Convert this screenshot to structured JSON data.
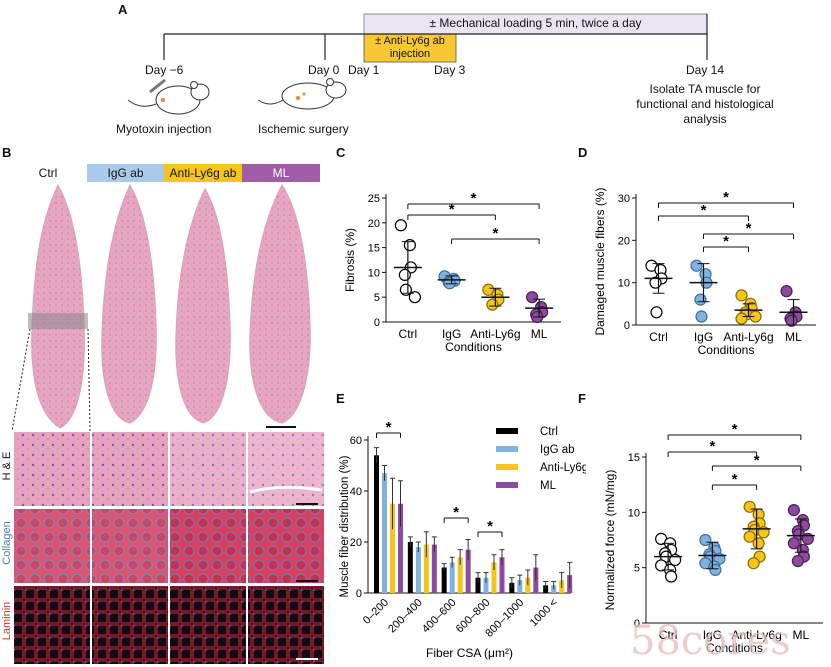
{
  "panel_a": {
    "label": "A",
    "loading_text": "± Mechanical loading 5 min, twice a day",
    "injection_text_line1": "± Anti-Ly6g ab",
    "injection_text_line2": "injection",
    "day_minus6": "Day −6",
    "day_0": "Day 0",
    "day_1": "Day 1",
    "day_3": "Day 3",
    "day_14": "Day 14",
    "myotoxin": "Myotoxin injection",
    "ischemic": "Ischemic surgery",
    "isolate_line1": "Isolate TA muscle for",
    "isolate_line2": "functional and histological",
    "isolate_line3": "analysis"
  },
  "panel_b": {
    "label": "B",
    "conditions": [
      "Ctrl",
      "IgG ab",
      "Anti-Ly6g ab",
      "ML"
    ],
    "condition_colors": [
      "#ffffff",
      "#a9cbe9",
      "#f5c518",
      "#a05ca5"
    ],
    "row_labels": [
      "H & E",
      "Collagen",
      "Laminin"
    ],
    "row_label_colors": [
      "#111111",
      "#4a7fb5",
      "#c0392b"
    ]
  },
  "colors": {
    "ctrl": "#000000",
    "igg": "#7fb2e0",
    "anti": "#f5c518",
    "ml": "#8e4a9e"
  },
  "watermark": "58cores",
  "chart_data": [
    {
      "panel": "C",
      "type": "scatter",
      "ylabel": "Fibrosis (%)",
      "xlabel": "Conditions",
      "categories": [
        "Ctrl",
        "IgG",
        "Anti-Ly6g",
        "ML"
      ],
      "ylim": [
        0,
        25
      ],
      "yticks": [
        0,
        5,
        10,
        15,
        20,
        25
      ],
      "means": [
        11,
        8.5,
        5,
        2.8
      ],
      "sd": [
        5.2,
        0.8,
        1.8,
        1.8
      ],
      "points": [
        [
          19.5,
          15.5,
          11,
          9.5,
          6.5,
          5
        ],
        [
          9.2,
          8.7,
          8.3,
          8,
          7.8
        ],
        [
          6.5,
          5.5,
          4.5,
          3.5
        ],
        [
          5,
          3,
          2,
          1.5,
          1
        ]
      ],
      "significance": [
        {
          "from": "Ctrl",
          "to": "ML",
          "label": "*"
        },
        {
          "from": "Ctrl",
          "to": "Anti-Ly6g",
          "label": "*"
        },
        {
          "from": "IgG",
          "to": "ML",
          "label": "*"
        }
      ]
    },
    {
      "panel": "D",
      "type": "scatter",
      "ylabel": "Damaged muscle fibers (%)",
      "xlabel": "Conditions",
      "categories": [
        "Ctrl",
        "IgG",
        "Anti-Ly6g",
        "ML"
      ],
      "ylim": [
        0,
        30
      ],
      "yticks": [
        0,
        10,
        20,
        30
      ],
      "means": [
        11,
        10,
        3.5,
        3
      ],
      "sd": [
        3.5,
        4.5,
        1.5,
        3
      ],
      "points": [
        [
          14,
          13,
          11,
          10,
          3
        ],
        [
          14,
          12,
          10,
          6,
          2
        ],
        [
          7,
          5,
          4,
          3,
          2.5,
          2,
          1.5
        ],
        [
          8,
          3,
          2,
          1.5,
          1
        ]
      ],
      "significance": [
        {
          "from": "Ctrl",
          "to": "ML",
          "label": "*"
        },
        {
          "from": "Ctrl",
          "to": "Anti-Ly6g",
          "label": "*"
        },
        {
          "from": "IgG",
          "to": "ML",
          "label": "*"
        },
        {
          "from": "IgG",
          "to": "Anti-Ly6g",
          "label": "*"
        }
      ]
    },
    {
      "panel": "E",
      "type": "bar",
      "ylabel": "Muscle fiber distribution (%)",
      "xlabel": "Fiber CSA (μm²)",
      "categories": [
        "0–200",
        "200–400",
        "400–600",
        "600–800",
        "800–1000",
        "1000 <"
      ],
      "ylim": [
        0,
        60
      ],
      "yticks": [
        0,
        20,
        40,
        60
      ],
      "series": [
        {
          "name": "Ctrl",
          "values": [
            54,
            20,
            10,
            6,
            4,
            3
          ],
          "errors": [
            3,
            2,
            1.5,
            2,
            2,
            1.5
          ]
        },
        {
          "name": "IgG ab",
          "values": [
            47,
            18,
            12,
            6,
            5,
            3
          ],
          "errors": [
            3,
            2,
            2,
            2,
            2,
            1.5
          ]
        },
        {
          "name": "Anti-Ly6g",
          "values": [
            35,
            19,
            14,
            12,
            6,
            5
          ],
          "errors": [
            10,
            5,
            3,
            3,
            3,
            3
          ]
        },
        {
          "name": "ML",
          "values": [
            35,
            19,
            17,
            14,
            10,
            7
          ],
          "errors": [
            9,
            3,
            4,
            3,
            5,
            5
          ]
        }
      ],
      "significance": [
        {
          "group": "0–200",
          "label": "*"
        },
        {
          "group": "400–600",
          "label": "*"
        },
        {
          "group": "600–800",
          "label": "*"
        }
      ]
    },
    {
      "panel": "F",
      "type": "scatter",
      "ylabel": "Normalized force (mN/mg)",
      "xlabel": "Conditions",
      "categories": [
        "Ctrl",
        "IgG",
        "Anti-Ly6g",
        "ML"
      ],
      "ylim": [
        0,
        15
      ],
      "yticks": [
        0,
        5,
        10,
        15
      ],
      "means": [
        6,
        6.1,
        8.5,
        7.9
      ],
      "sd": [
        1.2,
        1.2,
        1.8,
        1.5
      ],
      "points": [
        [
          7.6,
          7.2,
          6.6,
          6.3,
          6.0,
          5.7,
          5.2,
          4.8,
          4.2
        ],
        [
          7.5,
          6.8,
          6.5,
          6.2,
          6.0,
          5.8,
          5.4,
          5.1,
          4.8
        ],
        [
          10.5,
          9.8,
          9.0,
          8.7,
          8.4,
          8.2,
          7.8,
          7.2,
          6.0,
          5.4
        ],
        [
          10.2,
          9.3,
          8.8,
          8.3,
          8.0,
          7.6,
          7.2,
          6.6,
          6.0,
          5.6
        ]
      ],
      "significance": [
        {
          "from": "Ctrl",
          "to": "ML",
          "label": "*"
        },
        {
          "from": "Ctrl",
          "to": "Anti-Ly6g",
          "label": "*"
        },
        {
          "from": "IgG",
          "to": "ML",
          "label": "*"
        },
        {
          "from": "IgG",
          "to": "Anti-Ly6g",
          "label": "*"
        }
      ]
    }
  ]
}
